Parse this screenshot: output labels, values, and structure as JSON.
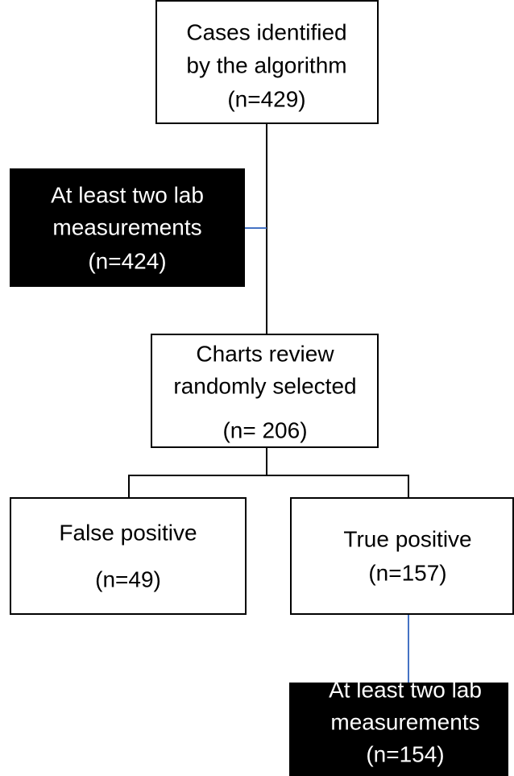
{
  "nodes": [
    {
      "lines": [
        "Cases identified",
        "by the algorithm",
        "(n=429)"
      ]
    },
    {
      "lines": [
        "At least two lab",
        "measurements",
        "(n=424)"
      ]
    },
    {
      "lines": [
        "Charts review",
        "randomly selected",
        "(n= 206)"
      ]
    },
    {
      "lines": [
        "False positive",
        "(n=49)"
      ]
    },
    {
      "lines": [
        "True positive",
        "(n=157)"
      ]
    },
    {
      "lines": [
        "At least two lab",
        "measurements",
        "(n=154)"
      ]
    }
  ]
}
